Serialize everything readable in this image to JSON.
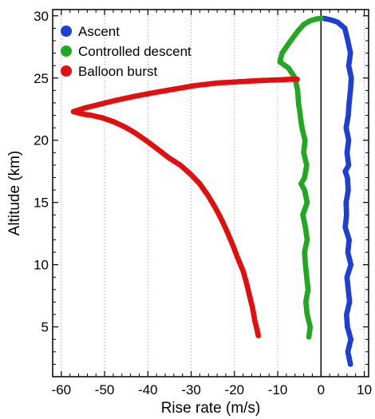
{
  "chart_data": {
    "type": "scatter",
    "title": "",
    "xlabel": "Rise rate (m/s)",
    "ylabel": "Altitude (km)",
    "xlim": [
      -62,
      11
    ],
    "ylim": [
      1,
      30.5
    ],
    "xticks": [
      -60,
      -50,
      -40,
      -30,
      -20,
      -10,
      0,
      10
    ],
    "yticks": [
      5,
      10,
      15,
      20,
      25,
      30
    ],
    "grid": "vertical dotted lines at x ticks",
    "zero_line": 0,
    "legend_position": "top-left",
    "series": [
      {
        "name": "Ascent",
        "color": "#1f3fd1",
        "points": [
          [
            6.8,
            2.0
          ],
          [
            6.2,
            3.0
          ],
          [
            6.9,
            4.0
          ],
          [
            6.1,
            5.0
          ],
          [
            5.9,
            6.0
          ],
          [
            6.6,
            7.0
          ],
          [
            6.3,
            8.0
          ],
          [
            6.0,
            9.0
          ],
          [
            6.9,
            10.0
          ],
          [
            6.2,
            11.0
          ],
          [
            6.5,
            12.0
          ],
          [
            5.6,
            13.0
          ],
          [
            5.9,
            14.0
          ],
          [
            5.8,
            15.0
          ],
          [
            6.3,
            16.0
          ],
          [
            6.1,
            17.0
          ],
          [
            5.6,
            17.5
          ],
          [
            6.4,
            18.0
          ],
          [
            6.0,
            19.0
          ],
          [
            6.4,
            20.0
          ],
          [
            5.8,
            21.0
          ],
          [
            6.3,
            22.0
          ],
          [
            6.5,
            23.0
          ],
          [
            6.8,
            24.0
          ],
          [
            7.0,
            25.0
          ],
          [
            6.4,
            26.0
          ],
          [
            6.8,
            27.0
          ],
          [
            6.2,
            28.0
          ],
          [
            5.5,
            29.0
          ],
          [
            3.8,
            29.5
          ],
          [
            2.0,
            29.7
          ],
          [
            0.5,
            29.8
          ]
        ]
      },
      {
        "name": "Controlled descent",
        "color": "#22a722",
        "points": [
          [
            -2.8,
            4.2
          ],
          [
            -2.5,
            5.0
          ],
          [
            -3.2,
            6.0
          ],
          [
            -3.5,
            7.0
          ],
          [
            -3.0,
            8.0
          ],
          [
            -3.3,
            9.0
          ],
          [
            -3.6,
            10.0
          ],
          [
            -3.8,
            11.0
          ],
          [
            -3.2,
            12.0
          ],
          [
            -3.6,
            13.0
          ],
          [
            -4.2,
            14.0
          ],
          [
            -3.2,
            15.0
          ],
          [
            -3.8,
            16.0
          ],
          [
            -4.6,
            16.5
          ],
          [
            -3.8,
            17.0
          ],
          [
            -3.3,
            18.0
          ],
          [
            -4.0,
            19.0
          ],
          [
            -3.7,
            20.0
          ],
          [
            -4.4,
            21.0
          ],
          [
            -4.8,
            22.0
          ],
          [
            -5.2,
            23.0
          ],
          [
            -5.4,
            24.0
          ],
          [
            -6.0,
            25.0
          ],
          [
            -7.5,
            25.8
          ],
          [
            -9.5,
            26.3
          ],
          [
            -9.0,
            27.0
          ],
          [
            -7.0,
            28.0
          ],
          [
            -5.5,
            28.7
          ],
          [
            -4.0,
            29.3
          ],
          [
            -2.5,
            29.6
          ],
          [
            -1.0,
            29.75
          ],
          [
            0.0,
            29.8
          ]
        ]
      },
      {
        "name": "Balloon burst",
        "color": "#e01010",
        "points": [
          [
            -14.5,
            4.3
          ],
          [
            -14.8,
            4.8
          ],
          [
            -15.3,
            5.5
          ],
          [
            -15.8,
            6.5
          ],
          [
            -16.5,
            7.5
          ],
          [
            -17.2,
            8.5
          ],
          [
            -18.0,
            9.5
          ],
          [
            -19.2,
            10.5
          ],
          [
            -20.3,
            11.5
          ],
          [
            -21.5,
            12.5
          ],
          [
            -22.8,
            13.5
          ],
          [
            -24.3,
            14.5
          ],
          [
            -26.0,
            15.5
          ],
          [
            -28.0,
            16.5
          ],
          [
            -30.2,
            17.3
          ],
          [
            -32.5,
            18.0
          ],
          [
            -35.2,
            18.6
          ],
          [
            -37.8,
            19.3
          ],
          [
            -40.5,
            20.0
          ],
          [
            -43.0,
            20.6
          ],
          [
            -45.5,
            21.1
          ],
          [
            -48.0,
            21.5
          ],
          [
            -50.5,
            21.8
          ],
          [
            -53.0,
            22.0
          ],
          [
            -55.0,
            22.1
          ],
          [
            -57.2,
            22.3
          ],
          [
            -54.5,
            22.6
          ],
          [
            -51.0,
            22.9
          ],
          [
            -47.5,
            23.2
          ],
          [
            -43.5,
            23.5
          ],
          [
            -39.0,
            23.8
          ],
          [
            -34.0,
            24.1
          ],
          [
            -29.0,
            24.4
          ],
          [
            -24.0,
            24.6
          ],
          [
            -19.0,
            24.7
          ],
          [
            -14.0,
            24.8
          ],
          [
            -10.0,
            24.85
          ],
          [
            -7.0,
            24.9
          ],
          [
            -5.5,
            24.9
          ]
        ]
      }
    ]
  }
}
